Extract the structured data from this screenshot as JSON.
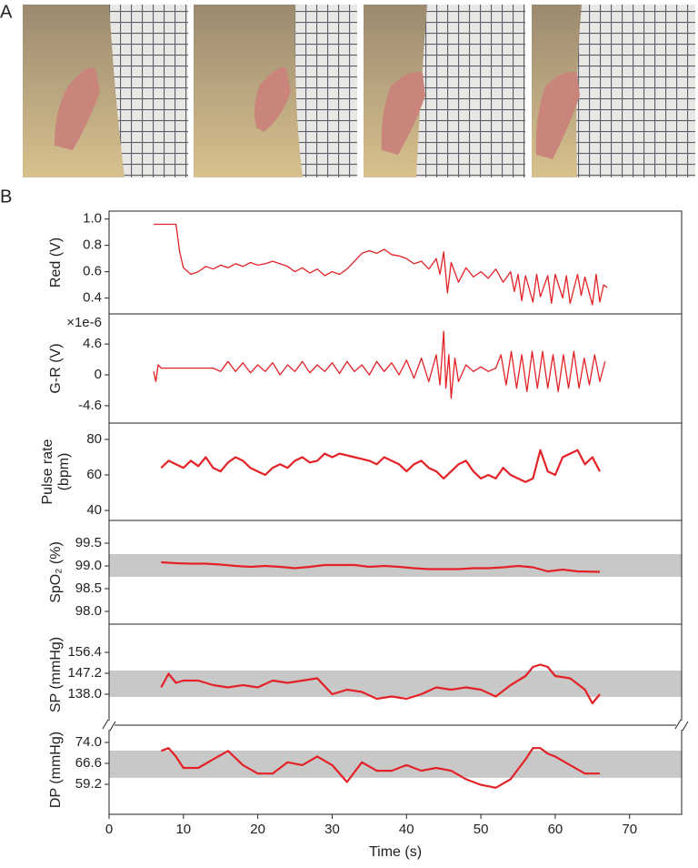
{
  "panel_labels": {
    "a": "A",
    "b": "B"
  },
  "chart_data": [
    {
      "type": "line",
      "ylabel": [
        "Red (V)"
      ],
      "color": "#e32227",
      "xlim": [
        0,
        77
      ],
      "ylim": [
        0.28,
        1.06
      ],
      "yticks": [
        {
          "value": 1,
          "label": "1.0"
        },
        0.8,
        0.6,
        0.4
      ],
      "x": [
        6,
        7,
        8,
        9,
        9.5,
        10,
        11,
        12,
        13,
        14,
        15,
        16,
        17,
        18,
        19,
        20,
        21,
        22,
        23,
        24,
        25,
        26,
        27,
        28,
        29,
        30,
        31,
        32,
        33,
        34,
        35,
        36,
        37,
        38,
        39,
        40,
        41,
        42,
        43,
        44,
        44.5,
        45,
        45.5,
        46,
        47,
        48,
        49,
        50,
        51,
        52,
        53,
        54,
        54.5,
        55,
        55.5,
        56,
        57,
        57.5,
        58,
        59,
        59.5,
        60,
        61,
        61.5,
        62,
        63,
        63.5,
        64,
        65,
        65.5,
        66,
        66.5,
        67
      ],
      "values": [
        0.96,
        0.96,
        0.96,
        0.96,
        0.75,
        0.63,
        0.58,
        0.6,
        0.64,
        0.62,
        0.65,
        0.63,
        0.66,
        0.64,
        0.67,
        0.65,
        0.66,
        0.68,
        0.66,
        0.64,
        0.6,
        0.63,
        0.59,
        0.62,
        0.57,
        0.6,
        0.58,
        0.62,
        0.68,
        0.74,
        0.76,
        0.74,
        0.77,
        0.73,
        0.72,
        0.7,
        0.66,
        0.68,
        0.62,
        0.7,
        0.58,
        0.75,
        0.44,
        0.67,
        0.52,
        0.63,
        0.56,
        0.6,
        0.55,
        0.62,
        0.52,
        0.6,
        0.45,
        0.58,
        0.38,
        0.57,
        0.37,
        0.58,
        0.41,
        0.57,
        0.36,
        0.58,
        0.4,
        0.57,
        0.36,
        0.58,
        0.42,
        0.56,
        0.35,
        0.58,
        0.37,
        0.5,
        0.48
      ]
    },
    {
      "type": "line",
      "ylabel": [
        "G-R (V)"
      ],
      "scale_label": "×1e-6",
      "color": "#e32227",
      "xlim": [
        0,
        77
      ],
      "ylim": [
        -7.2,
        9.1
      ],
      "yticks": [
        4.6,
        0,
        -4.6
      ],
      "x": [
        6,
        6.3,
        6.6,
        7,
        8,
        10,
        12,
        14,
        15,
        16,
        17,
        18,
        19,
        20,
        21,
        22,
        23,
        24,
        25,
        26,
        27,
        28,
        29,
        30,
        31,
        32,
        33,
        34,
        35,
        36,
        37,
        38,
        39,
        40,
        41,
        42,
        43,
        44,
        44.5,
        45,
        45.3,
        45.7,
        46,
        46.5,
        47,
        48,
        49,
        50,
        51,
        52,
        52.7,
        53.4,
        54.1,
        54.8,
        55.5,
        56.2,
        56.9,
        57.6,
        58.3,
        59,
        59.7,
        60.4,
        61.1,
        61.8,
        62.5,
        63.2,
        63.9,
        64.6,
        65.3,
        66,
        66.7
      ],
      "values": [
        0.5,
        -1,
        1.5,
        1,
        1,
        1,
        1,
        1,
        0.5,
        2,
        0.5,
        1.8,
        0.3,
        1.5,
        0.5,
        1.8,
        0,
        1.5,
        0.5,
        2,
        0.3,
        1.5,
        0.5,
        1.8,
        0.2,
        2,
        0.5,
        1.5,
        0,
        2,
        0.5,
        1.8,
        0,
        2.2,
        -0.5,
        2.5,
        -1,
        3,
        -1.5,
        6.5,
        -2,
        3,
        -3.5,
        2.5,
        -1,
        1.5,
        0.5,
        1.2,
        0.5,
        1,
        3,
        -1.5,
        3.5,
        -2,
        3,
        -2.5,
        3.5,
        -2,
        3.5,
        -2,
        3,
        -2.5,
        3,
        -2,
        3.5,
        -2,
        2.5,
        -1.5,
        3,
        -1,
        2
      ]
    },
    {
      "type": "line",
      "ylabel": [
        "Pulse rate",
        "(bpm)"
      ],
      "color": "#e32227",
      "xlim": [
        0,
        77
      ],
      "ylim": [
        34.4,
        89.2
      ],
      "yticks": [
        80,
        60,
        40
      ],
      "x": [
        7,
        8,
        9,
        10,
        11,
        12,
        13,
        14,
        15,
        16,
        17,
        18,
        19,
        20,
        21,
        22,
        23,
        24,
        25,
        26,
        27,
        28,
        29,
        30,
        31,
        32,
        33,
        34,
        35,
        36,
        37,
        38,
        39,
        40,
        41,
        42,
        43,
        44,
        45,
        46,
        47,
        48,
        49,
        50,
        51,
        52,
        53,
        54,
        55,
        56,
        57,
        58,
        59,
        60,
        61,
        62,
        63,
        64,
        65,
        66
      ],
      "values": [
        64,
        68,
        66,
        64,
        68,
        65,
        70,
        64,
        62,
        67,
        70,
        68,
        64,
        62,
        60,
        64,
        66,
        64,
        68,
        70,
        67,
        68,
        72,
        70,
        72,
        71,
        70,
        69,
        68,
        66,
        70,
        68,
        66,
        62,
        66,
        68,
        64,
        62,
        58,
        62,
        66,
        68,
        62,
        58,
        60,
        58,
        64,
        60,
        58,
        56,
        58,
        74,
        62,
        60,
        70,
        72,
        74,
        66,
        70,
        62
      ]
    },
    {
      "type": "line",
      "ylabel": [
        "SpO₂ (%)"
      ],
      "color": "#e32227",
      "band": [
        98.76,
        99.26
      ],
      "band_color": "#c8c8c8",
      "xlim": [
        0,
        77
      ],
      "ylim": [
        97.72,
        100
      ],
      "yticks": [
        99.5,
        {
          "value": 99,
          "label": "99.0"
        },
        98.5,
        {
          "value": 98,
          "label": "98.0"
        }
      ],
      "x": [
        7,
        9,
        11,
        13,
        15,
        17,
        19,
        21,
        23,
        25,
        27,
        29,
        31,
        33,
        35,
        37,
        39,
        41,
        43,
        45,
        47,
        49,
        51,
        53,
        55,
        57,
        59,
        61,
        63,
        66
      ],
      "values": [
        99.08,
        99.06,
        99.05,
        99.05,
        99.03,
        99.0,
        98.98,
        99.0,
        98.98,
        98.95,
        98.98,
        99.02,
        99.02,
        99.02,
        98.98,
        99.0,
        98.98,
        98.95,
        98.93,
        98.93,
        98.93,
        98.95,
        98.95,
        98.97,
        99.0,
        98.97,
        98.88,
        98.92,
        98.88,
        98.87
      ]
    },
    {
      "type": "line",
      "ylabel": [
        "SP (mmHg)"
      ],
      "color": "#e32227",
      "band": [
        136.8,
        148.4
      ],
      "band_color": "#c8c8c8",
      "xlim": [
        0,
        77
      ],
      "ylim": [
        124.4,
        168.8
      ],
      "yticks": [
        156.4,
        147.2,
        {
          "value": 138,
          "label": "138.0"
        }
      ],
      "x": [
        7,
        8,
        9,
        10,
        12,
        14,
        16,
        18,
        20,
        22,
        24,
        26,
        28,
        30,
        32,
        34,
        36,
        38,
        40,
        42,
        44,
        46,
        48,
        50,
        52,
        54,
        56,
        57,
        58,
        59,
        60,
        62,
        64,
        65,
        66
      ],
      "values": [
        141,
        147,
        143,
        144,
        144,
        142,
        141,
        142,
        141,
        144,
        143,
        144,
        145,
        138,
        140,
        139,
        136,
        137,
        136,
        138,
        141,
        140,
        141,
        140,
        137,
        142,
        146,
        150,
        151,
        150,
        146,
        145,
        140,
        134,
        138
      ]
    },
    {
      "type": "line",
      "ylabel": [
        "DP (mmHg)"
      ],
      "color": "#e32227",
      "band": [
        61.5,
        71.1
      ],
      "band_color": "#c8c8c8",
      "xlim": [
        0,
        77
      ],
      "ylim": [
        48.6,
        80.1
      ],
      "yticks": [
        {
          "value": 74,
          "label": "74.0"
        },
        66.6,
        59.2
      ],
      "xticks": [
        0,
        10,
        20,
        30,
        40,
        50,
        60,
        70
      ],
      "xlabel": "Time (s)",
      "x": [
        7,
        8,
        9,
        10,
        12,
        14,
        16,
        18,
        20,
        22,
        24,
        26,
        28,
        30,
        32,
        34,
        36,
        38,
        40,
        42,
        44,
        46,
        48,
        50,
        52,
        54,
        56,
        57,
        58,
        59,
        60,
        62,
        64,
        65,
        66
      ],
      "values": [
        71,
        72,
        69,
        65,
        65,
        68,
        71,
        66,
        63,
        63,
        67,
        66,
        69,
        66,
        60,
        67,
        64,
        64,
        66,
        64,
        65,
        64,
        61,
        59,
        58,
        61,
        68,
        72,
        72,
        70,
        69,
        66,
        63,
        63,
        63
      ]
    }
  ]
}
